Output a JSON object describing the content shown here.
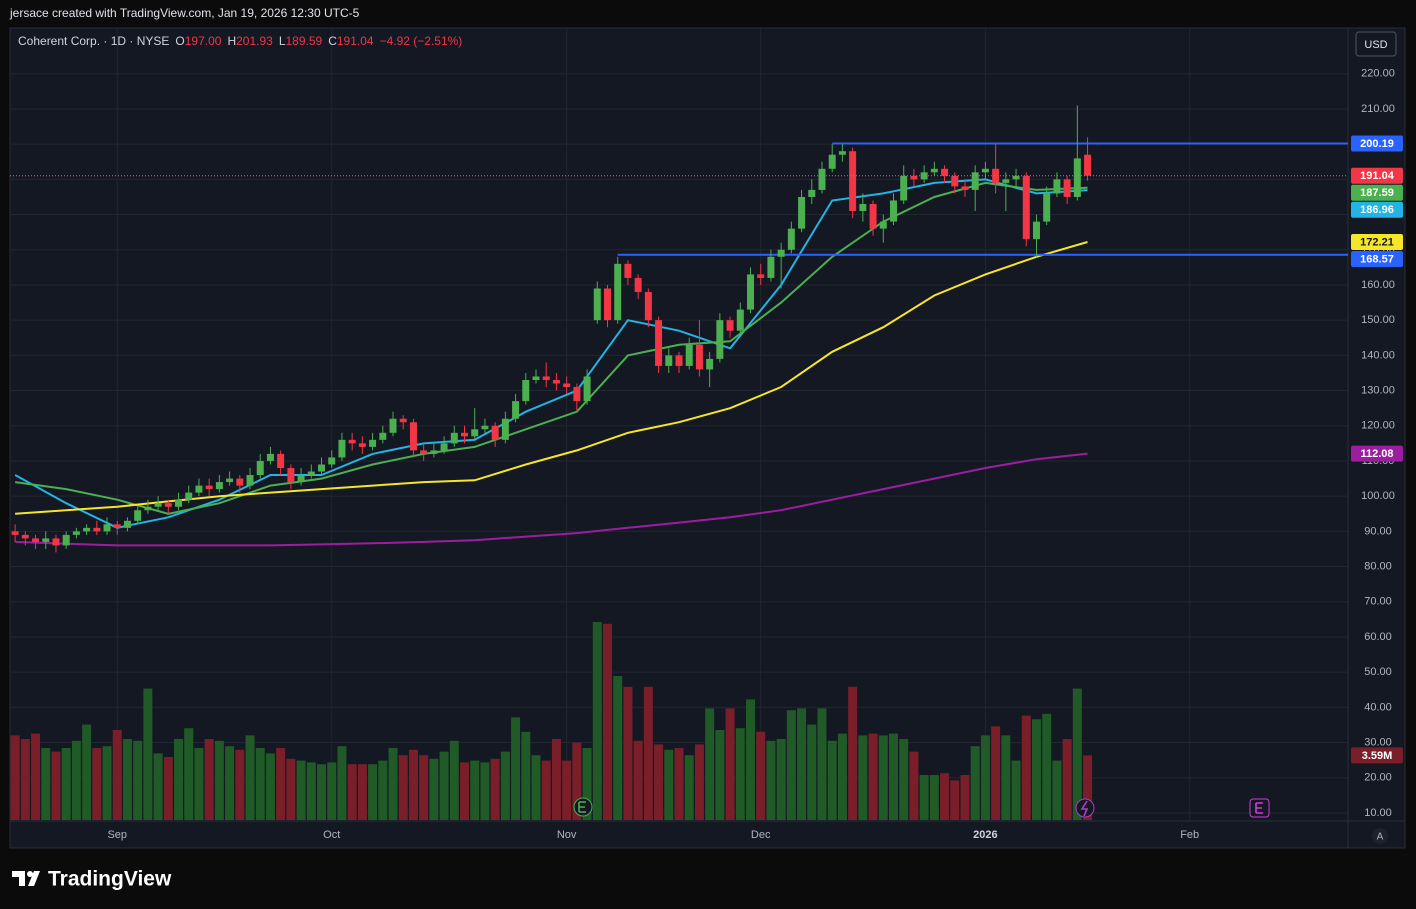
{
  "header": "jersace created with TradingView.com, Jan 19, 2026 12:30 UTC-5",
  "legend": {
    "symbol": "Coherent Corp. · 1D · NYSE",
    "ohlc": [
      {
        "key": "O",
        "value": "197.00"
      },
      {
        "key": "H",
        "value": "201.93"
      },
      {
        "key": "L",
        "value": "189.59"
      },
      {
        "key": "C",
        "value": "191.04"
      }
    ],
    "change": "−4.92 (−2.51%)"
  },
  "currency": "USD",
  "scale_mode": "A",
  "brand": "TradingView",
  "chart_data": {
    "type": "candlestick",
    "xlim": [
      -0.5,
      130.5
    ],
    "xticks": [
      {
        "value": 10,
        "label": "Sep"
      },
      {
        "value": 31,
        "label": "Oct"
      },
      {
        "value": 54,
        "label": "Nov"
      },
      {
        "value": 73,
        "label": "Dec"
      },
      {
        "value": 95,
        "label": "2026"
      },
      {
        "value": 115,
        "label": "Feb"
      }
    ],
    "ylim": [
      8,
      233
    ],
    "yticks": [
      {
        "value": 220,
        "label": "220.00"
      },
      {
        "value": 210,
        "label": "210.00"
      },
      {
        "value": 200,
        "label": "200.00"
      },
      {
        "value": 190,
        "label": "190.00"
      },
      {
        "value": 180,
        "label": "180.00"
      },
      {
        "value": 170,
        "label": "170.00"
      },
      {
        "value": 160,
        "label": "160.00"
      },
      {
        "value": 150,
        "label": "150.00"
      },
      {
        "value": 140,
        "label": "140.00"
      },
      {
        "value": 130,
        "label": "130.00"
      },
      {
        "value": 120,
        "label": "120.00"
      },
      {
        "value": 110,
        "label": "110.00"
      },
      {
        "value": 100,
        "label": "100.00"
      },
      {
        "value": 90,
        "label": "90.00"
      },
      {
        "value": 80,
        "label": "80.00"
      },
      {
        "value": 70,
        "label": "70.00"
      },
      {
        "value": 60,
        "label": "60.00"
      },
      {
        "value": 50,
        "label": "50.00"
      },
      {
        "value": 40,
        "label": "40.00"
      },
      {
        "value": 30,
        "label": "30.00"
      },
      {
        "value": 20,
        "label": "20.00"
      },
      {
        "value": 10,
        "label": "10.00"
      }
    ],
    "grid": true,
    "up_color": "#4caf50",
    "down_color": "#f23645",
    "open": [
      90,
      89,
      88,
      87,
      88,
      86,
      89,
      90,
      91,
      90,
      92,
      91,
      93,
      96,
      97,
      98,
      97,
      99,
      101,
      103,
      102,
      104,
      105,
      103,
      106,
      110,
      112,
      108,
      104,
      106,
      107,
      109,
      111,
      116,
      115,
      114,
      116,
      118,
      122,
      121,
      113,
      112,
      113,
      115,
      118,
      117,
      119,
      120,
      116,
      122,
      127,
      133,
      134,
      133,
      132,
      131,
      127,
      150,
      159,
      150,
      166,
      162,
      158,
      150,
      137,
      140,
      137,
      143,
      136,
      139,
      150,
      147,
      153,
      163,
      162,
      168,
      170,
      176,
      185,
      187,
      193,
      197,
      198,
      181,
      183,
      176,
      178,
      184,
      191,
      190,
      192,
      193,
      191,
      188,
      187,
      192,
      193,
      189,
      190,
      191,
      173,
      178,
      186,
      190,
      185,
      197
    ],
    "high": [
      92,
      90,
      89,
      90,
      89,
      90,
      91,
      92,
      93,
      94,
      93,
      94,
      97,
      99,
      100,
      99,
      101,
      103,
      105,
      105,
      106,
      107,
      106,
      108,
      112,
      114,
      113,
      109,
      108,
      109,
      111,
      113,
      118,
      118,
      117,
      118,
      120,
      124,
      123,
      122,
      115,
      115,
      117,
      120,
      120,
      125,
      122,
      121,
      124,
      129,
      135,
      136,
      138,
      135,
      134,
      132,
      136,
      161,
      160,
      168,
      167,
      163,
      159,
      151,
      142,
      141,
      145,
      150,
      141,
      152,
      151,
      155,
      165,
      166,
      170,
      172,
      178,
      187,
      190,
      195,
      200,
      200,
      199,
      186,
      184,
      180,
      186,
      194,
      193,
      194,
      195,
      194,
      192,
      190,
      194,
      195,
      200,
      192,
      193,
      192,
      180,
      188,
      192,
      191,
      211,
      201.93
    ],
    "low": [
      87,
      86,
      85,
      85,
      84,
      85,
      88,
      89,
      89,
      89,
      89,
      90,
      92,
      95,
      96,
      95,
      96,
      98,
      100,
      100,
      101,
      103,
      101,
      102,
      105,
      109,
      106,
      102,
      103,
      105,
      106,
      108,
      110,
      113,
      112,
      113,
      115,
      117,
      119,
      111,
      110,
      111,
      112,
      114,
      115,
      116,
      118,
      114,
      115,
      121,
      126,
      132,
      131,
      130,
      129,
      124,
      126,
      149,
      148,
      149,
      160,
      156,
      148,
      135,
      135,
      135,
      136,
      134,
      131,
      138,
      145,
      146,
      152,
      160,
      161,
      159,
      169,
      175,
      183,
      186,
      192,
      195,
      179,
      178,
      174,
      172,
      177,
      183,
      188,
      189,
      191,
      189,
      186,
      185,
      181,
      190,
      186,
      181,
      188,
      171,
      168,
      177,
      185,
      183,
      184,
      189.59
    ],
    "close": [
      89,
      88,
      87,
      88,
      86,
      89,
      90,
      91,
      90,
      92,
      91,
      93,
      96,
      97,
      98,
      97,
      99,
      101,
      103,
      102,
      104,
      105,
      103,
      106,
      110,
      112,
      108,
      104,
      106,
      107,
      109,
      111,
      116,
      115,
      114,
      116,
      118,
      122,
      121,
      113,
      112,
      113,
      115,
      118,
      117,
      119,
      120,
      116,
      122,
      127,
      133,
      134,
      133,
      132,
      131,
      127,
      134,
      159,
      150,
      166,
      162,
      158,
      150,
      137,
      140,
      137,
      143,
      136,
      139,
      150,
      147,
      153,
      163,
      162,
      168,
      170,
      176,
      185,
      187,
      193,
      197,
      198,
      181,
      183,
      176,
      178,
      184,
      191,
      190,
      192,
      193,
      191,
      188,
      187,
      192,
      193,
      189,
      190,
      191,
      173,
      178,
      186,
      190,
      185,
      195.96,
      191.04
    ],
    "volume": {
      "up_color": "#1f5a27",
      "down_color": "#7a1f29",
      "values": [
        4.7,
        4.5,
        4.8,
        4.0,
        3.8,
        4.0,
        4.4,
        5.3,
        4.0,
        4.1,
        5.0,
        4.5,
        4.4,
        7.3,
        3.7,
        3.5,
        4.5,
        5.1,
        4.0,
        4.5,
        4.4,
        4.1,
        3.9,
        4.7,
        4.0,
        3.7,
        4.0,
        3.4,
        3.3,
        3.2,
        3.1,
        3.2,
        4.1,
        3.1,
        3.1,
        3.1,
        3.3,
        4.0,
        3.6,
        3.9,
        3.6,
        3.4,
        3.8,
        4.4,
        3.2,
        3.3,
        3.2,
        3.4,
        3.8,
        5.7,
        4.9,
        3.6,
        3.3,
        4.5,
        3.3,
        4.3,
        4.0,
        11.0,
        10.9,
        8.0,
        7.4,
        4.4,
        7.4,
        4.2,
        3.9,
        4.0,
        3.6,
        4.2,
        6.2,
        5.0,
        6.2,
        5.1,
        6.7,
        4.9,
        4.4,
        4.5,
        6.1,
        6.2,
        5.3,
        6.2,
        4.4,
        4.8,
        7.4,
        4.7,
        4.8,
        4.7,
        4.8,
        4.5,
        3.8,
        2.5,
        2.5,
        2.6,
        2.2,
        2.5,
        4.1,
        4.7,
        5.2,
        4.7,
        3.3,
        5.8,
        5.6,
        5.9,
        3.3,
        4.5,
        7.3,
        3.59
      ]
    },
    "volume_tag": "3.59M",
    "series": [
      {
        "color": "#22b4e4",
        "x": [
          0,
          5,
          10,
          15,
          20,
          25,
          30,
          35,
          40,
          45,
          50,
          55,
          60,
          65,
          70,
          75,
          80,
          85,
          90,
          95,
          100,
          105
        ],
        "values": [
          106,
          98,
          91,
          94,
          99,
          106,
          106,
          112,
          115,
          116,
          124,
          130,
          150,
          147,
          142,
          160,
          184,
          186,
          189,
          190,
          186,
          186.96
        ]
      },
      {
        "color": "#4caf50",
        "x": [
          0,
          5,
          10,
          15,
          20,
          25,
          30,
          35,
          40,
          45,
          50,
          55,
          60,
          65,
          70,
          75,
          80,
          85,
          90,
          95,
          100,
          105
        ],
        "values": [
          104,
          102,
          99,
          95,
          98,
          103,
          105,
          109,
          112,
          114,
          119,
          124,
          140,
          143,
          144,
          155,
          168,
          178,
          185,
          189,
          187,
          187.59
        ]
      },
      {
        "color": "#f5e62a",
        "x": [
          0,
          5,
          10,
          15,
          20,
          25,
          30,
          35,
          40,
          45,
          50,
          55,
          60,
          65,
          70,
          75,
          80,
          85,
          90,
          95,
          100,
          105
        ],
        "values": [
          95,
          96,
          97,
          98.5,
          100,
          101,
          102,
          103,
          104,
          104.5,
          109,
          113,
          118,
          121,
          125,
          131,
          141,
          148,
          157,
          163,
          168,
          172.21
        ]
      },
      {
        "color": "#9c1ea0",
        "x": [
          0,
          5,
          10,
          15,
          20,
          25,
          30,
          35,
          40,
          45,
          50,
          55,
          60,
          65,
          70,
          75,
          80,
          85,
          90,
          95,
          100,
          105
        ],
        "values": [
          87,
          86.5,
          86,
          86,
          86,
          86,
          86.3,
          86.6,
          87,
          87.5,
          88.5,
          89.5,
          91,
          92.5,
          94,
          96,
          99,
          102,
          105,
          108,
          110.5,
          112.08
        ]
      }
    ],
    "levels": [
      {
        "value": 200.19,
        "start": 80,
        "color": "#2962ff"
      },
      {
        "value": 168.57,
        "start": 59,
        "color": "#2962ff"
      }
    ]
  }
}
